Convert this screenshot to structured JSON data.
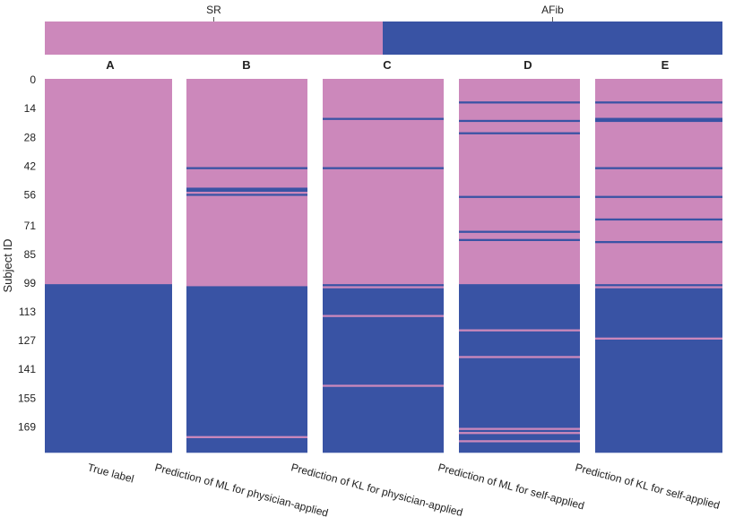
{
  "chart_data": {
    "type": "heatmap",
    "ylabel": "Subject ID",
    "y_ticks": [
      0,
      14,
      28,
      42,
      56,
      71,
      85,
      99,
      113,
      127,
      141,
      155,
      169
    ],
    "n_subjects": 182,
    "classes": [
      {
        "name": "SR",
        "color": "#cc88bb"
      },
      {
        "name": "AFib",
        "color": "#3953a4"
      }
    ],
    "true_label_ranges": {
      "SR": [
        0,
        99
      ],
      "AFib": [
        100,
        181
      ]
    },
    "columns": [
      {
        "letter": "A",
        "label": "True label",
        "misclassified_subjects": []
      },
      {
        "letter": "B",
        "label": "Prediction of ML for physician-applied",
        "misclassified_subjects": [
          43,
          53,
          54,
          56,
          100,
          174
        ]
      },
      {
        "letter": "C",
        "label": "Prediction of KL for physician-applied",
        "misclassified_subjects": [
          19,
          43,
          101,
          115,
          149
        ]
      },
      {
        "letter": "D",
        "label": "Prediction of ML for self-applied",
        "misclassified_subjects": [
          11,
          20,
          26,
          57,
          74,
          78,
          122,
          135,
          170,
          172,
          176
        ]
      },
      {
        "letter": "E",
        "label": "Prediction of KL for self-applied",
        "misclassified_subjects": [
          11,
          19,
          20,
          43,
          57,
          68,
          79,
          101,
          126
        ]
      }
    ]
  }
}
